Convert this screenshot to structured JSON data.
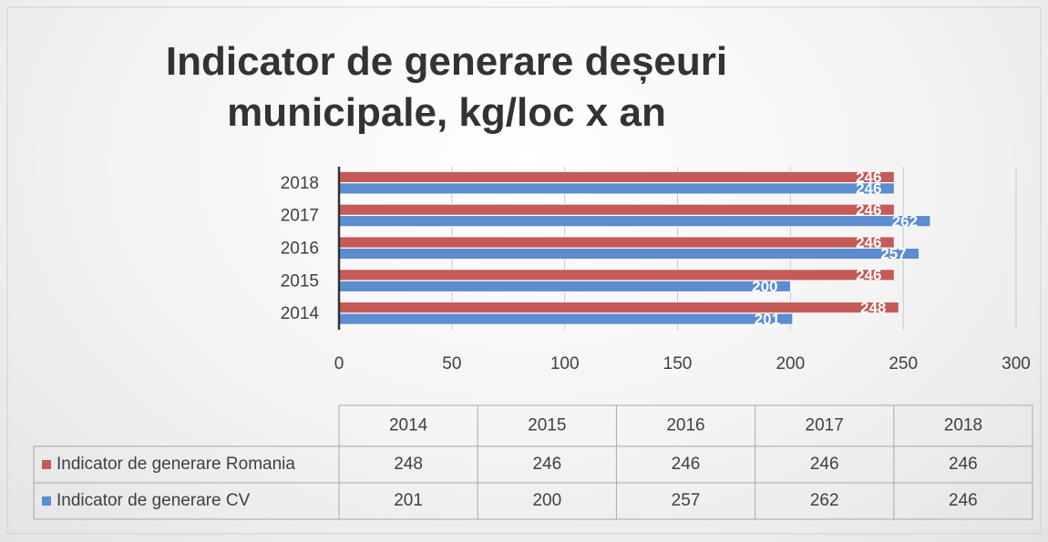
{
  "chart_data": {
    "type": "hbar",
    "title": "Indicator de generare deșeuri municipale, kg/loc x an",
    "categories": [
      "2014",
      "2015",
      "2016",
      "2017",
      "2018"
    ],
    "series": [
      {
        "name": "Indicator de generare Romania",
        "color": "#c55a58",
        "values": [
          248,
          246,
          246,
          246,
          246
        ]
      },
      {
        "name": "Indicator de generare CV",
        "color": "#5b8dd0",
        "values": [
          201,
          200,
          257,
          262,
          246
        ]
      }
    ],
    "xlim": [
      0,
      300
    ],
    "xticks": [
      0,
      50,
      100,
      150,
      200,
      250,
      300
    ],
    "grid": true,
    "data_table": true
  }
}
